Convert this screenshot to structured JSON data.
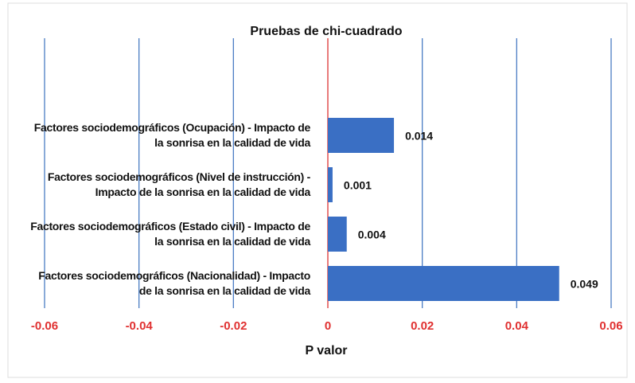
{
  "chart_data": {
    "type": "bar",
    "orientation": "horizontal",
    "title": "Pruebas de chi-cuadrado",
    "xlabel": "P valor",
    "categories": [
      "Factores sociodemográficos (Ocupación)  - Impacto de la sonrisa en la calidad de vida",
      "Factores sociodemográficos (Nivel de instrucción)  - Impacto de la sonrisa en la calidad de vida",
      "Factores sociodemográficos (Estado civil)  - Impacto de la sonrisa en la calidad de vida",
      "Factores sociodemográficos (Nacionalidad)  - Impacto de la sonrisa en la calidad de vida"
    ],
    "values": [
      0.014,
      0.001,
      0.004,
      0.049
    ],
    "color": "#3a6fc4",
    "xlim": [
      -0.06,
      0.06
    ],
    "xticks": [
      -0.06,
      -0.04,
      -0.02,
      0,
      0.02,
      0.04,
      0.06
    ],
    "grid": true
  }
}
